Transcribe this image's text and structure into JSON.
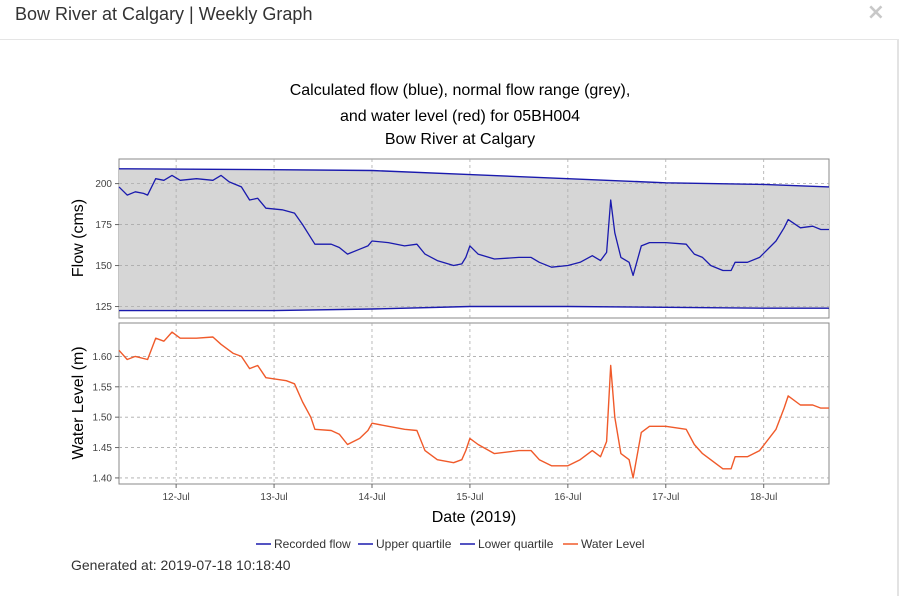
{
  "modal": {
    "title": "Bow River at Calgary | Weekly Graph",
    "close_symbol": "×"
  },
  "generated_label": "Generated at:",
  "generated_value": "2019-07-18 10:18:40",
  "colors": {
    "recorded_flow": "#1a1aae",
    "quartiles": "#1a1aae",
    "water_level": "#f05a2a",
    "normal_range_fill": "#d6d6d6",
    "plot_bg": "#ffffff",
    "grid": "#aaaaaa"
  },
  "chart_data": {
    "type": "line",
    "title_lines": [
      "Calculated flow (blue), normal flow range (grey),",
      "and water level (red) for 05BH004",
      "Bow River at Calgary"
    ],
    "xlabel": "Date (2019)",
    "x_ticks": [
      "12-Jul",
      "13-Jul",
      "14-Jul",
      "15-Jul",
      "16-Jul",
      "17-Jul",
      "18-Jul"
    ],
    "xlim": [
      "2019-07-11 10:00",
      "2019-07-18 16:00"
    ],
    "grid": true,
    "legend": {
      "placement": "bottom",
      "entries": [
        "Recorded flow",
        "Upper quartile",
        "Lower quartile",
        "Water Level"
      ]
    },
    "flow_panel": {
      "ylabel": "Flow (cms)",
      "ylim": [
        118,
        215
      ],
      "y_ticks": [
        "125",
        "150",
        "175",
        "200"
      ],
      "upper_quartile": [
        {
          "x": "2019-07-11 10:00",
          "y": 209
        },
        {
          "x": "2019-07-13 00:00",
          "y": 208.5
        },
        {
          "x": "2019-07-14 00:00",
          "y": 208
        },
        {
          "x": "2019-07-15 00:00",
          "y": 205.5
        },
        {
          "x": "2019-07-16 00:00",
          "y": 203
        },
        {
          "x": "2019-07-17 00:00",
          "y": 200.5
        },
        {
          "x": "2019-07-18 00:00",
          "y": 199.5
        },
        {
          "x": "2019-07-18 16:00",
          "y": 198
        }
      ],
      "lower_quartile": [
        {
          "x": "2019-07-11 10:00",
          "y": 122.5
        },
        {
          "x": "2019-07-13 00:00",
          "y": 122.5
        },
        {
          "x": "2019-07-14 00:00",
          "y": 123.5
        },
        {
          "x": "2019-07-15 00:00",
          "y": 125
        },
        {
          "x": "2019-07-16 00:00",
          "y": 125
        },
        {
          "x": "2019-07-17 00:00",
          "y": 124.5
        },
        {
          "x": "2019-07-18 00:00",
          "y": 124
        },
        {
          "x": "2019-07-18 16:00",
          "y": 124
        }
      ],
      "recorded_flow": [
        {
          "x": "2019-07-11 10:00",
          "y": 198
        },
        {
          "x": "2019-07-11 12:00",
          "y": 193
        },
        {
          "x": "2019-07-11 14:00",
          "y": 195
        },
        {
          "x": "2019-07-11 16:00",
          "y": 194
        },
        {
          "x": "2019-07-11 17:00",
          "y": 193
        },
        {
          "x": "2019-07-11 19:00",
          "y": 203
        },
        {
          "x": "2019-07-11 21:00",
          "y": 202
        },
        {
          "x": "2019-07-11 23:00",
          "y": 205
        },
        {
          "x": "2019-07-12 01:00",
          "y": 202
        },
        {
          "x": "2019-07-12 05:00",
          "y": 203
        },
        {
          "x": "2019-07-12 09:00",
          "y": 202
        },
        {
          "x": "2019-07-12 11:00",
          "y": 205
        },
        {
          "x": "2019-07-12 13:00",
          "y": 201
        },
        {
          "x": "2019-07-12 16:00",
          "y": 198
        },
        {
          "x": "2019-07-12 18:00",
          "y": 190
        },
        {
          "x": "2019-07-12 20:00",
          "y": 191
        },
        {
          "x": "2019-07-12 22:00",
          "y": 185
        },
        {
          "x": "2019-07-13 02:00",
          "y": 184
        },
        {
          "x": "2019-07-13 05:00",
          "y": 182
        },
        {
          "x": "2019-07-13 07:00",
          "y": 175
        },
        {
          "x": "2019-07-13 09:00",
          "y": 167
        },
        {
          "x": "2019-07-13 10:00",
          "y": 163
        },
        {
          "x": "2019-07-13 14:00",
          "y": 163
        },
        {
          "x": "2019-07-13 16:00",
          "y": 161
        },
        {
          "x": "2019-07-13 18:00",
          "y": 157
        },
        {
          "x": "2019-07-13 21:00",
          "y": 160
        },
        {
          "x": "2019-07-13 23:00",
          "y": 162
        },
        {
          "x": "2019-07-14 00:00",
          "y": 165
        },
        {
          "x": "2019-07-14 04:00",
          "y": 164
        },
        {
          "x": "2019-07-14 08:00",
          "y": 162
        },
        {
          "x": "2019-07-14 11:00",
          "y": 163
        },
        {
          "x": "2019-07-14 13:00",
          "y": 157
        },
        {
          "x": "2019-07-14 16:00",
          "y": 153
        },
        {
          "x": "2019-07-14 20:00",
          "y": 150
        },
        {
          "x": "2019-07-14 22:00",
          "y": 151
        },
        {
          "x": "2019-07-14 23:00",
          "y": 155
        },
        {
          "x": "2019-07-15 00:00",
          "y": 162
        },
        {
          "x": "2019-07-15 02:00",
          "y": 157
        },
        {
          "x": "2019-07-15 06:00",
          "y": 154
        },
        {
          "x": "2019-07-15 12:00",
          "y": 155
        },
        {
          "x": "2019-07-15 15:00",
          "y": 155
        },
        {
          "x": "2019-07-15 17:00",
          "y": 152
        },
        {
          "x": "2019-07-15 20:00",
          "y": 149
        },
        {
          "x": "2019-07-16 00:00",
          "y": 150
        },
        {
          "x": "2019-07-16 03:00",
          "y": 152
        },
        {
          "x": "2019-07-16 06:00",
          "y": 156
        },
        {
          "x": "2019-07-16 08:00",
          "y": 153
        },
        {
          "x": "2019-07-16 09:30",
          "y": 158
        },
        {
          "x": "2019-07-16 10:30",
          "y": 190
        },
        {
          "x": "2019-07-16 11:30",
          "y": 170
        },
        {
          "x": "2019-07-16 13:00",
          "y": 155
        },
        {
          "x": "2019-07-16 15:00",
          "y": 152
        },
        {
          "x": "2019-07-16 16:00",
          "y": 144
        },
        {
          "x": "2019-07-16 18:00",
          "y": 162
        },
        {
          "x": "2019-07-16 20:00",
          "y": 164
        },
        {
          "x": "2019-07-17 00:00",
          "y": 164
        },
        {
          "x": "2019-07-17 05:00",
          "y": 163
        },
        {
          "x": "2019-07-17 07:00",
          "y": 157
        },
        {
          "x": "2019-07-17 09:00",
          "y": 155
        },
        {
          "x": "2019-07-17 11:00",
          "y": 150
        },
        {
          "x": "2019-07-17 14:00",
          "y": 147
        },
        {
          "x": "2019-07-17 16:00",
          "y": 147
        },
        {
          "x": "2019-07-17 17:00",
          "y": 152
        },
        {
          "x": "2019-07-17 20:00",
          "y": 152
        },
        {
          "x": "2019-07-17 23:00",
          "y": 155
        },
        {
          "x": "2019-07-18 03:00",
          "y": 165
        },
        {
          "x": "2019-07-18 05:00",
          "y": 173
        },
        {
          "x": "2019-07-18 06:00",
          "y": 178
        },
        {
          "x": "2019-07-18 09:00",
          "y": 173
        },
        {
          "x": "2019-07-18 12:00",
          "y": 174
        },
        {
          "x": "2019-07-18 14:00",
          "y": 172
        },
        {
          "x": "2019-07-18 16:00",
          "y": 172
        }
      ]
    },
    "level_panel": {
      "ylabel": "Water Level (m)",
      "ylim": [
        1.39,
        1.655
      ],
      "y_ticks": [
        "1.40",
        "1.45",
        "1.50",
        "1.55",
        "1.60"
      ],
      "water_level": [
        {
          "x": "2019-07-11 10:00",
          "y": 1.61
        },
        {
          "x": "2019-07-11 12:00",
          "y": 1.595
        },
        {
          "x": "2019-07-11 14:00",
          "y": 1.6
        },
        {
          "x": "2019-07-11 17:00",
          "y": 1.595
        },
        {
          "x": "2019-07-11 19:00",
          "y": 1.63
        },
        {
          "x": "2019-07-11 21:00",
          "y": 1.625
        },
        {
          "x": "2019-07-11 23:00",
          "y": 1.64
        },
        {
          "x": "2019-07-12 01:00",
          "y": 1.63
        },
        {
          "x": "2019-07-12 05:00",
          "y": 1.63
        },
        {
          "x": "2019-07-12 09:00",
          "y": 1.632
        },
        {
          "x": "2019-07-12 11:00",
          "y": 1.62
        },
        {
          "x": "2019-07-12 14:00",
          "y": 1.605
        },
        {
          "x": "2019-07-12 16:00",
          "y": 1.6
        },
        {
          "x": "2019-07-12 18:00",
          "y": 1.58
        },
        {
          "x": "2019-07-12 20:00",
          "y": 1.585
        },
        {
          "x": "2019-07-12 22:00",
          "y": 1.565
        },
        {
          "x": "2019-07-13 03:00",
          "y": 1.56
        },
        {
          "x": "2019-07-13 05:00",
          "y": 1.555
        },
        {
          "x": "2019-07-13 07:00",
          "y": 1.525
        },
        {
          "x": "2019-07-13 09:00",
          "y": 1.5
        },
        {
          "x": "2019-07-13 10:00",
          "y": 1.48
        },
        {
          "x": "2019-07-13 14:00",
          "y": 1.478
        },
        {
          "x": "2019-07-13 16:00",
          "y": 1.472
        },
        {
          "x": "2019-07-13 18:00",
          "y": 1.455
        },
        {
          "x": "2019-07-13 21:00",
          "y": 1.465
        },
        {
          "x": "2019-07-13 23:00",
          "y": 1.478
        },
        {
          "x": "2019-07-14 00:00",
          "y": 1.49
        },
        {
          "x": "2019-07-14 04:00",
          "y": 1.485
        },
        {
          "x": "2019-07-14 08:00",
          "y": 1.48
        },
        {
          "x": "2019-07-14 11:00",
          "y": 1.478
        },
        {
          "x": "2019-07-14 13:00",
          "y": 1.445
        },
        {
          "x": "2019-07-14 16:00",
          "y": 1.43
        },
        {
          "x": "2019-07-14 20:00",
          "y": 1.425
        },
        {
          "x": "2019-07-14 22:00",
          "y": 1.43
        },
        {
          "x": "2019-07-14 23:00",
          "y": 1.445
        },
        {
          "x": "2019-07-15 00:00",
          "y": 1.465
        },
        {
          "x": "2019-07-15 02:00",
          "y": 1.455
        },
        {
          "x": "2019-07-15 06:00",
          "y": 1.44
        },
        {
          "x": "2019-07-15 12:00",
          "y": 1.445
        },
        {
          "x": "2019-07-15 15:00",
          "y": 1.445
        },
        {
          "x": "2019-07-15 17:00",
          "y": 1.43
        },
        {
          "x": "2019-07-15 20:00",
          "y": 1.42
        },
        {
          "x": "2019-07-16 00:00",
          "y": 1.42
        },
        {
          "x": "2019-07-16 03:00",
          "y": 1.43
        },
        {
          "x": "2019-07-16 06:00",
          "y": 1.445
        },
        {
          "x": "2019-07-16 08:00",
          "y": 1.435
        },
        {
          "x": "2019-07-16 09:30",
          "y": 1.46
        },
        {
          "x": "2019-07-16 10:30",
          "y": 1.585
        },
        {
          "x": "2019-07-16 11:30",
          "y": 1.5
        },
        {
          "x": "2019-07-16 13:00",
          "y": 1.44
        },
        {
          "x": "2019-07-16 15:00",
          "y": 1.43
        },
        {
          "x": "2019-07-16 16:00",
          "y": 1.4
        },
        {
          "x": "2019-07-16 18:00",
          "y": 1.475
        },
        {
          "x": "2019-07-16 20:00",
          "y": 1.485
        },
        {
          "x": "2019-07-17 00:00",
          "y": 1.485
        },
        {
          "x": "2019-07-17 05:00",
          "y": 1.48
        },
        {
          "x": "2019-07-17 07:00",
          "y": 1.455
        },
        {
          "x": "2019-07-17 09:00",
          "y": 1.44
        },
        {
          "x": "2019-07-17 11:00",
          "y": 1.43
        },
        {
          "x": "2019-07-17 14:00",
          "y": 1.415
        },
        {
          "x": "2019-07-17 16:00",
          "y": 1.415
        },
        {
          "x": "2019-07-17 17:00",
          "y": 1.435
        },
        {
          "x": "2019-07-17 20:00",
          "y": 1.435
        },
        {
          "x": "2019-07-17 23:00",
          "y": 1.445
        },
        {
          "x": "2019-07-18 03:00",
          "y": 1.48
        },
        {
          "x": "2019-07-18 05:00",
          "y": 1.515
        },
        {
          "x": "2019-07-18 06:00",
          "y": 1.535
        },
        {
          "x": "2019-07-18 09:00",
          "y": 1.52
        },
        {
          "x": "2019-07-18 12:00",
          "y": 1.52
        },
        {
          "x": "2019-07-18 14:00",
          "y": 1.515
        },
        {
          "x": "2019-07-18 16:00",
          "y": 1.515
        }
      ]
    }
  }
}
